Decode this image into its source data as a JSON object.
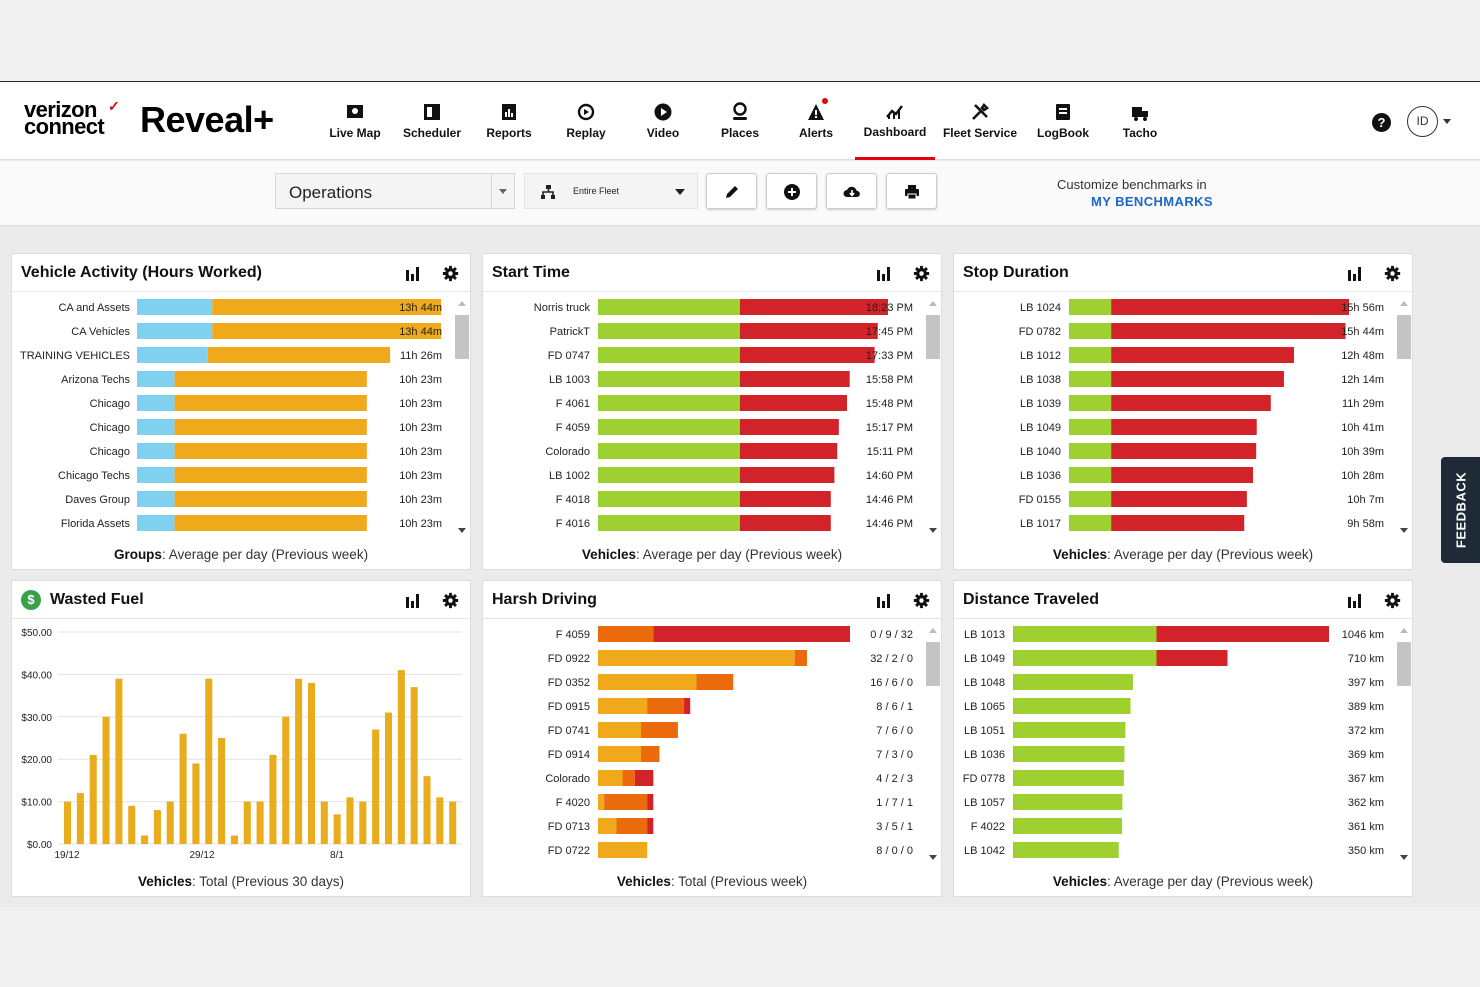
{
  "brand": {
    "company": "verizon connect",
    "product": "Reveal+"
  },
  "nav": [
    {
      "label": "Live Map",
      "icon": "live-map-icon"
    },
    {
      "label": "Scheduler",
      "icon": "scheduler-icon"
    },
    {
      "label": "Reports",
      "icon": "reports-icon"
    },
    {
      "label": "Replay",
      "icon": "replay-icon"
    },
    {
      "label": "Video",
      "icon": "video-icon"
    },
    {
      "label": "Places",
      "icon": "places-icon"
    },
    {
      "label": "Alerts",
      "icon": "alerts-icon"
    },
    {
      "label": "Dashboard",
      "icon": "dashboard-icon",
      "active": true
    },
    {
      "label": "Fleet Service",
      "icon": "fleet-service-icon"
    },
    {
      "label": "LogBook",
      "icon": "logbook-icon"
    },
    {
      "label": "Tacho",
      "icon": "tacho-icon"
    }
  ],
  "user": {
    "help": "?",
    "initials": "ID"
  },
  "toolbar": {
    "dashboard_select": "Operations",
    "fleet_select": "Entire Fleet",
    "benchmark_text": "Customize benchmarks in",
    "benchmark_link": "MY BENCHMARKS"
  },
  "feedback": "FEEDBACK",
  "colors": {
    "blue": "#7fd1ef",
    "orange": "#f0a91b",
    "green": "#9ed130",
    "red": "#d2232a",
    "dark_orange": "#ea6a0c",
    "gold_bar": "#e9ac1c"
  },
  "panels": {
    "activity": {
      "title": "Vehicle Activity (Hours Worked)",
      "footer_bold": "Groups",
      "footer_rest": ": Average per day (Previous week)",
      "chart_data": {
        "type": "bar",
        "orientation": "horizontal",
        "stacked": true,
        "unit": "hours",
        "categories": [
          "CA and Assets",
          "CA Vehicles",
          "TRAINING VEHICLES",
          "Arizona Techs",
          "Chicago",
          "Chicago",
          "Chicago",
          "Chicago Techs",
          "Daves Group",
          "Florida Assets"
        ],
        "series": [
          {
            "color": "#7fd1ef",
            "values": [
              3.4,
              3.4,
              3.2,
              1.7,
              1.7,
              1.7,
              1.7,
              1.7,
              1.7,
              1.7
            ]
          },
          {
            "color": "#f0a91b",
            "values": [
              10.33,
              10.33,
              8.23,
              8.68,
              8.68,
              8.68,
              8.68,
              8.68,
              8.68,
              8.68
            ]
          }
        ],
        "labels": [
          "13h 44m",
          "13h 44m",
          "11h 26m",
          "10h 23m",
          "10h 23m",
          "10h 23m",
          "10h 23m",
          "10h 23m",
          "10h 23m",
          "10h 23m"
        ],
        "max": 14
      }
    },
    "start": {
      "title": "Start Time",
      "footer_bold": "Vehicles",
      "footer_rest": ": Average per day (Previous week)",
      "chart_data": {
        "type": "bar",
        "orientation": "horizontal",
        "stacked": true,
        "categories": [
          "Norris truck",
          "PatrickT",
          "FD 0747",
          "LB 1003",
          "F 4061",
          "F 4059",
          "Colorado",
          "LB 1002",
          "F 4018",
          "F 4016"
        ],
        "series": [
          {
            "color": "#9ed130",
            "values": [
              9,
              9,
              9,
              9,
              9,
              9,
              9,
              9,
              9,
              9
            ]
          },
          {
            "color": "#d2232a",
            "values": [
              9.4,
              8.75,
              8.55,
              6.97,
              6.8,
              6.28,
              6.18,
              6.0,
              5.77,
              5.77
            ]
          }
        ],
        "labels": [
          "18:23 PM",
          "17:45 PM",
          "17:33 PM",
          "15:58 PM",
          "15:48 PM",
          "15:17 PM",
          "15:11 PM",
          "14:60 PM",
          "14:46 PM",
          "14:46 PM"
        ],
        "max": 18.4
      }
    },
    "stop": {
      "title": "Stop Duration",
      "footer_bold": "Vehicles",
      "footer_rest": ": Average per day (Previous week)",
      "chart_data": {
        "type": "bar",
        "orientation": "horizontal",
        "stacked": true,
        "categories": [
          "LB 1024",
          "FD 0782",
          "LB 1012",
          "LB 1038",
          "LB 1039",
          "LB 1049",
          "LB 1040",
          "LB 1036",
          "FD 0155",
          "LB 1017"
        ],
        "series": [
          {
            "color": "#9ed130",
            "values": [
              2.4,
              2.4,
              2.4,
              2.4,
              2.4,
              2.4,
              2.4,
              2.4,
              2.4,
              2.4
            ]
          },
          {
            "color": "#d2232a",
            "values": [
              13.53,
              13.33,
              10.4,
              9.83,
              9.08,
              8.28,
              8.25,
              8.07,
              7.72,
              7.57
            ]
          }
        ],
        "labels": [
          "15h 56m",
          "15h 44m",
          "12h 48m",
          "12h 14m",
          "11h 29m",
          "10h 41m",
          "10h 39m",
          "10h 28m",
          "10h 7m",
          "9h 58m"
        ],
        "max": 15.93
      }
    },
    "fuel": {
      "title": "Wasted Fuel",
      "footer_bold": "Vehicles",
      "footer_rest": ": Total (Previous 30 days)",
      "chart_data": {
        "type": "bar",
        "color": "#e9ac1c",
        "ylabels": [
          "$50.00",
          "$40.00",
          "$30.00",
          "$20.00",
          "$10.00",
          "$0.00"
        ],
        "ylim": [
          0,
          50
        ],
        "xlabels": [
          "19/12",
          "29/12",
          "8/1"
        ],
        "values": [
          10,
          12,
          21,
          30,
          39,
          9,
          2,
          8,
          10,
          26,
          19,
          39,
          25,
          2,
          10,
          10,
          21,
          30,
          39,
          38,
          10,
          7,
          11,
          10,
          27,
          31,
          41,
          37,
          16,
          11,
          10
        ]
      }
    },
    "harsh": {
      "title": "Harsh Driving",
      "footer_bold": "Vehicles",
      "footer_rest": ": Total (Previous week)",
      "chart_data": {
        "type": "bar",
        "orientation": "horizontal",
        "stacked": true,
        "categories": [
          "F 4059",
          "FD 0922",
          "FD 0352",
          "FD 0915",
          "FD 0741",
          "FD 0914",
          "Colorado",
          "F 4020",
          "FD 0713",
          "FD 0722"
        ],
        "series": [
          {
            "color": "#f0a91b",
            "values": [
              0,
              32,
              16,
              8,
              7,
              7,
              4,
              1,
              3,
              8
            ]
          },
          {
            "color": "#ea6a0c",
            "values": [
              9,
              2,
              6,
              6,
              6,
              3,
              2,
              7,
              5,
              0
            ]
          },
          {
            "color": "#d2232a",
            "values": [
              32,
              0,
              0,
              1,
              0,
              0,
              3,
              1,
              1,
              0
            ]
          }
        ],
        "labels": [
          "0 / 9 / 32",
          "32 / 2 / 0",
          "16 / 6 / 0",
          "8 / 6 / 1",
          "7 / 6 / 0",
          "7 / 3 / 0",
          "4 / 2 / 3",
          "1 / 7 / 1",
          "3 / 5 / 1",
          "8 / 0 / 0"
        ],
        "max": 41
      }
    },
    "distance": {
      "title": "Distance Traveled",
      "footer_bold": "Vehicles",
      "footer_rest": ": Average per day (Previous week)",
      "chart_data": {
        "type": "bar",
        "orientation": "horizontal",
        "stacked": true,
        "unit": "km",
        "categories": [
          "LB 1013",
          "LB 1049",
          "LB 1048",
          "LB 1065",
          "LB 1051",
          "LB 1036",
          "FD 0778",
          "LB 1057",
          "F 4022",
          "LB 1042"
        ],
        "series": [
          {
            "color": "#9ed130",
            "values": [
              475,
              475,
              397,
              389,
              372,
              369,
              367,
              362,
              361,
              350
            ]
          },
          {
            "color": "#d2232a",
            "values": [
              571,
              235,
              0,
              0,
              0,
              0,
              0,
              0,
              0,
              0
            ]
          }
        ],
        "labels": [
          "1046 km",
          "710 km",
          "397 km",
          "389 km",
          "372 km",
          "369 km",
          "367 km",
          "362 km",
          "361 km",
          "350 km"
        ],
        "max": 1046
      }
    }
  }
}
